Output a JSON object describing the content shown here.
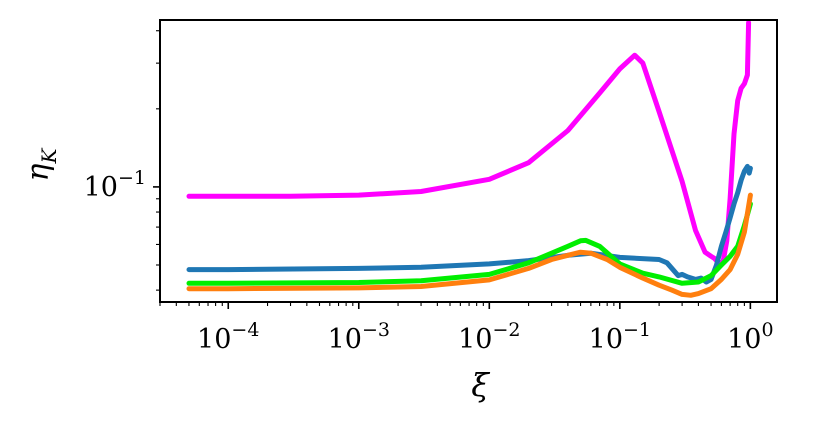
{
  "chart_data": {
    "type": "line",
    "xlabel": "ξ",
    "ylabel": "η",
    "ylabel_sub": "K",
    "xscale": "log",
    "yscale": "log",
    "xlim": [
      3e-05,
      1.6
    ],
    "ylim": [
      0.036,
      0.44
    ],
    "x_ticks": [
      {
        "value": 0.0001,
        "base": "10",
        "exp": "−4"
      },
      {
        "value": 0.001,
        "base": "10",
        "exp": "−3"
      },
      {
        "value": 0.01,
        "base": "10",
        "exp": "−2"
      },
      {
        "value": 0.1,
        "base": "10",
        "exp": "−1"
      },
      {
        "value": 1,
        "base": "10",
        "exp": "0"
      }
    ],
    "y_ticks": [
      {
        "value": 0.1,
        "base": "10",
        "exp": "−1"
      }
    ],
    "grid": false,
    "legend": "none",
    "series": [
      {
        "color": "#ff00ff",
        "x": [
          5e-05,
          0.0001,
          0.0003,
          0.001,
          0.003,
          0.01,
          0.02,
          0.04,
          0.07,
          0.1,
          0.13,
          0.15,
          0.2,
          0.3,
          0.38,
          0.45,
          0.5,
          0.53,
          0.55,
          0.58,
          0.62,
          0.66,
          0.7,
          0.75,
          0.8,
          0.85,
          0.9,
          0.95,
          0.97
        ],
        "y": [
          0.092,
          0.092,
          0.092,
          0.093,
          0.096,
          0.107,
          0.124,
          0.165,
          0.23,
          0.285,
          0.322,
          0.3,
          0.195,
          0.105,
          0.068,
          0.056,
          0.054,
          0.053,
          0.052,
          0.05,
          0.052,
          0.062,
          0.09,
          0.16,
          0.215,
          0.24,
          0.25,
          0.27,
          0.43
        ]
      },
      {
        "color": "#1f77b4",
        "x": [
          5e-05,
          0.0001,
          0.001,
          0.003,
          0.01,
          0.02,
          0.04,
          0.06,
          0.1,
          0.2,
          0.23,
          0.26,
          0.28,
          0.3,
          0.33,
          0.38,
          0.42,
          0.46,
          0.5,
          0.55,
          0.6,
          0.65,
          0.7,
          0.75,
          0.8,
          0.85,
          0.9,
          0.95,
          0.98,
          1.0
        ],
        "y": [
          0.048,
          0.048,
          0.0485,
          0.049,
          0.0505,
          0.052,
          0.0545,
          0.0555,
          0.0535,
          0.0525,
          0.051,
          0.0475,
          0.0455,
          0.046,
          0.045,
          0.044,
          0.0445,
          0.043,
          0.044,
          0.05,
          0.059,
          0.067,
          0.076,
          0.086,
          0.095,
          0.106,
          0.115,
          0.12,
          0.113,
          0.118
        ]
      },
      {
        "color": "#00ee00",
        "x": [
          5e-05,
          0.0001,
          0.001,
          0.003,
          0.01,
          0.02,
          0.03,
          0.04,
          0.05,
          0.055,
          0.07,
          0.1,
          0.15,
          0.2,
          0.3,
          0.4,
          0.5,
          0.6,
          0.7,
          0.8,
          0.9,
          1.0
        ],
        "y": [
          0.0425,
          0.0425,
          0.0428,
          0.0435,
          0.046,
          0.051,
          0.0555,
          0.059,
          0.062,
          0.0622,
          0.059,
          0.0505,
          0.0465,
          0.045,
          0.0425,
          0.043,
          0.0455,
          0.05,
          0.054,
          0.059,
          0.071,
          0.086
        ]
      },
      {
        "color": "#ff7f0e",
        "x": [
          5e-05,
          0.0001,
          0.001,
          0.003,
          0.01,
          0.02,
          0.03,
          0.04,
          0.05,
          0.06,
          0.08,
          0.1,
          0.15,
          0.2,
          0.25,
          0.3,
          0.35,
          0.4,
          0.5,
          0.6,
          0.7,
          0.8,
          0.9,
          1.0
        ],
        "y": [
          0.0405,
          0.0405,
          0.0408,
          0.0413,
          0.0438,
          0.0485,
          0.0525,
          0.0545,
          0.056,
          0.0555,
          0.0525,
          0.049,
          0.0445,
          0.0418,
          0.04,
          0.0385,
          0.0382,
          0.0388,
          0.0405,
          0.044,
          0.048,
          0.055,
          0.067,
          0.093
        ]
      }
    ]
  }
}
